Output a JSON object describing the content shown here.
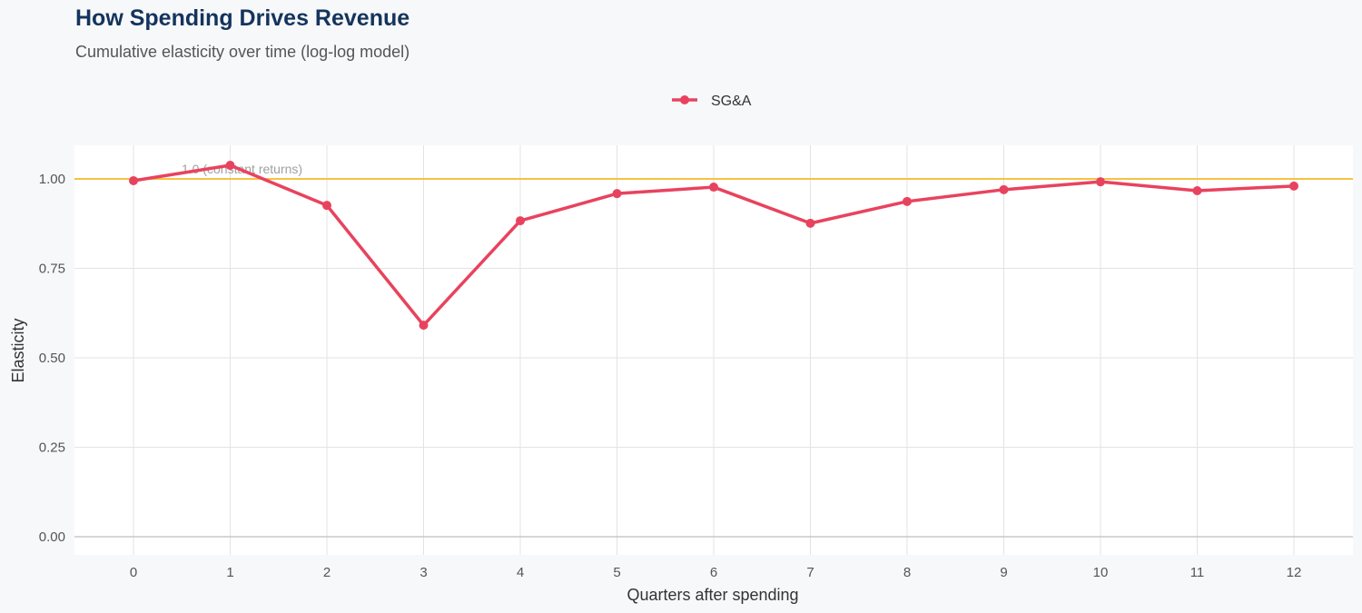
{
  "title": "How Spending Drives Revenue",
  "subtitle": "Cumulative elasticity over time (log-log model)",
  "colors": {
    "series": "#e8435e",
    "reference": "#f5c242",
    "background": "#f7f8fa",
    "panel": "#ffffff"
  },
  "chart_data": {
    "type": "line",
    "title": "How Spending Drives Revenue",
    "subtitle": "Cumulative elasticity over time (log-log model)",
    "xlabel": "Quarters after spending",
    "ylabel": "Elasticity",
    "x": [
      0,
      1,
      2,
      3,
      4,
      5,
      6,
      7,
      8,
      9,
      10,
      11,
      12
    ],
    "x_ticks": [
      "0",
      "1",
      "2",
      "3",
      "4",
      "5",
      "6",
      "7",
      "8",
      "9",
      "10",
      "11",
      "12"
    ],
    "y_ticks": [
      "0.00",
      "0.25",
      "0.50",
      "0.75",
      "1.00"
    ],
    "ylim": [
      -0.05,
      1.09
    ],
    "xlim": [
      -0.6,
      12.6
    ],
    "grid": true,
    "legend_position": "top",
    "series": [
      {
        "name": "SG&A",
        "values": [
          0.995,
          1.038,
          0.926,
          0.591,
          0.883,
          0.959,
          0.977,
          0.876,
          0.937,
          0.97,
          0.992,
          0.967,
          0.98
        ]
      }
    ],
    "reference_line": {
      "y": 1.0,
      "label": "1.0 (constant returns)"
    }
  }
}
